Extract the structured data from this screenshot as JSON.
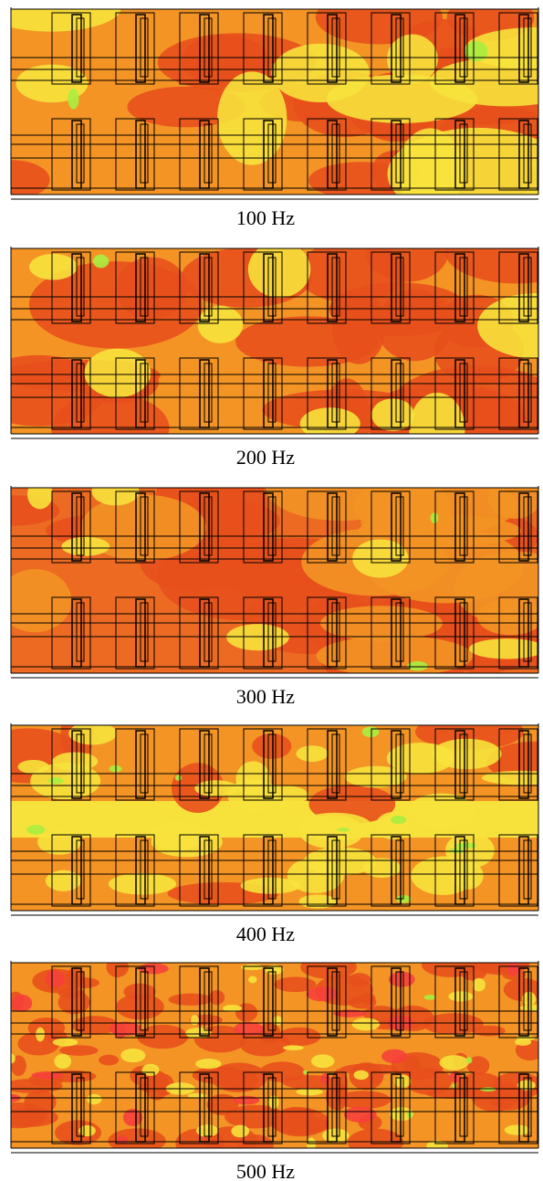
{
  "panels": [
    {
      "caption": "100 Hz"
    },
    {
      "caption": "200 Hz"
    },
    {
      "caption": "300 Hz"
    },
    {
      "caption": "400 Hz"
    },
    {
      "caption": "500 Hz"
    }
  ]
}
